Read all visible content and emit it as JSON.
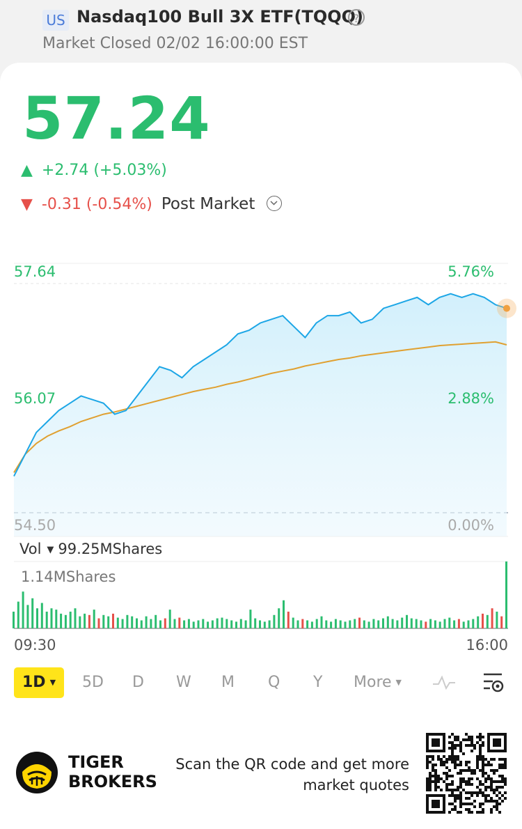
{
  "header": {
    "region": "US",
    "title": "Nasdaq100 Bull 3X ETF(TQQQ)",
    "help_icon": "question-circle-icon",
    "status": "Market Closed 02/02 16:00:00 EST"
  },
  "quote": {
    "price": "57.24",
    "change_up_arrow": "▲",
    "change": "+2.74 (+5.03%)",
    "post_down_arrow": "▼",
    "post_change": "-0.31 (-0.54%)",
    "post_label": "Post Market"
  },
  "chart_labels": {
    "y_high": "57.64",
    "y_mid": "56.07",
    "y_low": "54.50",
    "pct_high": "5.76%",
    "pct_mid": "2.88%",
    "pct_low": "0.00%",
    "time_start": "09:30",
    "time_end": "16:00"
  },
  "volume": {
    "label": "Vol",
    "total": "99.25MShares",
    "max": "1.14MShares"
  },
  "tabs": [
    {
      "label": "1D",
      "active": true
    },
    {
      "label": "5D"
    },
    {
      "label": "D"
    },
    {
      "label": "W"
    },
    {
      "label": "M"
    },
    {
      "label": "Q"
    },
    {
      "label": "Y"
    },
    {
      "label": "More"
    }
  ],
  "toolbar_icons": [
    "line-chart-icon",
    "chart-settings-icon"
  ],
  "footer": {
    "brand_line1": "TIGER",
    "brand_line2": "BROKERS",
    "scan_line1": "Scan the QR code and get more",
    "scan_line2": "market quotes"
  },
  "colors": {
    "up": "#2bbd6f",
    "down": "#e6504a",
    "price_line": "#1ca6e6",
    "avg_line": "#e0a030",
    "active_tab": "#ffe41a"
  },
  "chart_data": {
    "type": "line",
    "x_range": [
      "09:30",
      "16:00"
    ],
    "ylim": [
      54.5,
      57.64
    ],
    "series": [
      {
        "values": [
          55.0,
          55.3,
          55.6,
          55.75,
          55.9,
          56.0,
          56.1,
          56.05,
          56.0,
          55.85,
          55.9,
          56.1,
          56.3,
          56.5,
          56.45,
          56.35,
          56.5,
          56.6,
          56.7,
          56.8,
          56.95,
          57.0,
          57.1,
          57.15,
          57.2,
          57.05,
          56.9,
          57.1,
          57.2,
          57.2,
          57.25,
          57.1,
          57.15,
          57.3,
          57.35,
          57.4,
          57.45,
          57.35,
          57.45,
          57.5,
          57.45,
          57.5,
          57.45,
          57.35,
          57.3
        ]
      },
      {
        "values": [
          55.05,
          55.3,
          55.45,
          55.55,
          55.62,
          55.68,
          55.75,
          55.8,
          55.85,
          55.88,
          55.92,
          55.96,
          56.0,
          56.04,
          56.08,
          56.12,
          56.16,
          56.19,
          56.22,
          56.26,
          56.29,
          56.33,
          56.37,
          56.41,
          56.44,
          56.47,
          56.51,
          56.54,
          56.57,
          56.6,
          56.62,
          56.65,
          56.67,
          56.69,
          56.71,
          56.73,
          56.75,
          56.77,
          56.79,
          56.8,
          56.81,
          56.82,
          56.83,
          56.84,
          56.8
        ]
      }
    ],
    "volume": [
      0.25,
      0.4,
      0.55,
      0.35,
      0.45,
      0.3,
      0.38,
      0.25,
      0.3,
      0.28,
      0.22,
      0.2,
      0.25,
      0.3,
      0.18,
      0.22,
      0.2,
      0.28,
      0.15,
      0.2,
      0.18,
      0.22,
      0.16,
      0.14,
      0.2,
      0.18,
      0.15,
      0.12,
      0.18,
      0.14,
      0.2,
      0.12,
      0.15,
      0.28,
      0.14,
      0.16,
      0.12,
      0.14,
      0.1,
      0.12,
      0.14,
      0.1,
      0.12,
      0.15,
      0.16,
      0.14,
      0.12,
      0.1,
      0.14,
      0.12,
      0.28,
      0.15,
      0.12,
      0.1,
      0.12,
      0.2,
      0.3,
      0.42,
      0.25,
      0.16,
      0.12,
      0.14,
      0.12,
      0.1,
      0.14,
      0.18,
      0.12,
      0.1,
      0.14,
      0.12,
      0.1,
      0.12,
      0.14,
      0.16,
      0.12,
      0.1,
      0.14,
      0.12,
      0.15,
      0.18,
      0.14,
      0.12,
      0.16,
      0.2,
      0.15,
      0.14,
      0.12,
      0.1,
      0.14,
      0.12,
      0.1,
      0.14,
      0.16,
      0.12,
      0.14,
      0.1,
      0.12,
      0.14,
      0.18,
      0.22,
      0.2,
      0.3,
      0.25,
      0.18,
      1.0
    ]
  }
}
